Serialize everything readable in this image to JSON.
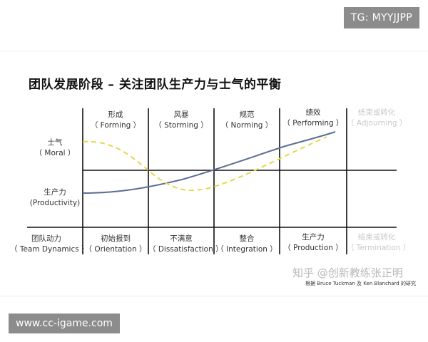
{
  "header": {
    "badge": "TG: MYYJJPP"
  },
  "footer": {
    "badge": "www.cc-igame.com"
  },
  "diagram": {
    "title": "团队发展阶段 – 关注团队生产力与士气的平衡",
    "stages": [
      {
        "name": "形成",
        "en": "（ Forming ）",
        "dynamics": "初始报到",
        "dynamics_en": "（ Orientation ）",
        "muted": false
      },
      {
        "name": "风暴",
        "en": "（ Storming ）",
        "dynamics": "不满意",
        "dynamics_en": "（ Dissatisfaction ）",
        "muted": false
      },
      {
        "name": "规范",
        "en": "（ Norming ）",
        "dynamics": "整合",
        "dynamics_en": "（ Integration ）",
        "muted": false
      },
      {
        "name": "绩效",
        "en": "（ Performing ）",
        "dynamics": "生产力",
        "dynamics_en": "（ Production ）",
        "muted": false
      },
      {
        "name": "结束或转化",
        "en": "（ Adjourning ）",
        "dynamics": "结束或转化",
        "dynamics_en": "（ Termination ）",
        "muted": true
      }
    ],
    "row_labels": {
      "morale": "士气",
      "morale_en": "（ Moral ）",
      "productivity": "生产力",
      "productivity_en": "(Productivity)",
      "dynamics": "团队动力",
      "dynamics_en": "（ Team Dynamics ）"
    },
    "lines": {
      "productivity_color": "#5b6e92",
      "morale_color": "#e2d94a",
      "grid_color": "#111111"
    },
    "watermark": "知乎 @创新教练张正明",
    "credit": "根据 Bruce Tuckman 及 Ken Blanchard 的研究"
  }
}
